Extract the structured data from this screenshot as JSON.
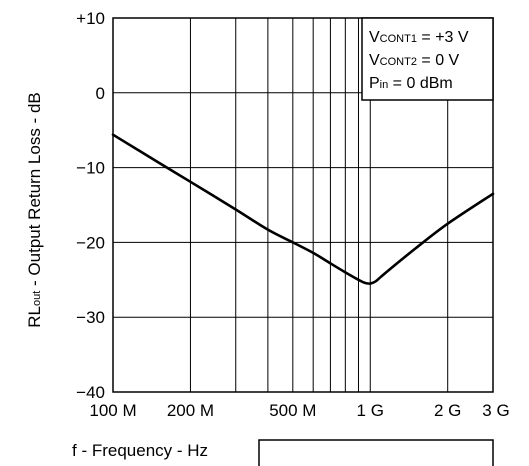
{
  "chart_data": {
    "type": "line",
    "x_scale": "log",
    "y_scale": "linear",
    "xlim": [
      100,
      3000
    ],
    "ylim": [
      -40,
      10
    ],
    "x_ticks": [
      {
        "value": 100,
        "label": "100 M"
      },
      {
        "value": 200,
        "label": "200 M"
      },
      {
        "value": 500,
        "label": "500 M"
      },
      {
        "value": 1000,
        "label": "1 G"
      },
      {
        "value": 2000,
        "label": "2 G"
      },
      {
        "value": 3000,
        "label": "3 G"
      }
    ],
    "y_ticks": [
      {
        "value": 10,
        "label": "+10"
      },
      {
        "value": 0,
        "label": "0"
      },
      {
        "value": -10,
        "label": "−10"
      },
      {
        "value": -20,
        "label": "−20"
      },
      {
        "value": -30,
        "label": "−30"
      },
      {
        "value": -40,
        "label": "−40"
      }
    ],
    "xlabel": "f - Frequency - Hz",
    "ylabel_main": "RL",
    "ylabel_sub": "out",
    "ylabel_rest": " - Output Return Loss - dB",
    "grid": true,
    "legend": {
      "placement": "top-right",
      "lines": [
        {
          "main": "V",
          "sub": "CONT1",
          "rest": " = +3 V"
        },
        {
          "main": "V",
          "sub": "CONT2",
          "rest": " = 0 V"
        },
        {
          "main": "P",
          "sub": "in",
          "rest": " = 0 dBm"
        }
      ]
    },
    "series": [
      {
        "x": [
          100,
          150,
          200,
          300,
          400,
          500,
          600,
          700,
          800,
          900,
          950,
          1000,
          1050,
          1100,
          1200,
          1500,
          2000,
          3000
        ],
        "y": [
          -5.6,
          -9.3,
          -11.9,
          -15.6,
          -18.3,
          -20.0,
          -21.4,
          -22.8,
          -24.0,
          -25.0,
          -25.4,
          -25.5,
          -25.2,
          -24.6,
          -23.5,
          -20.8,
          -17.5,
          -13.5
        ]
      }
    ]
  }
}
